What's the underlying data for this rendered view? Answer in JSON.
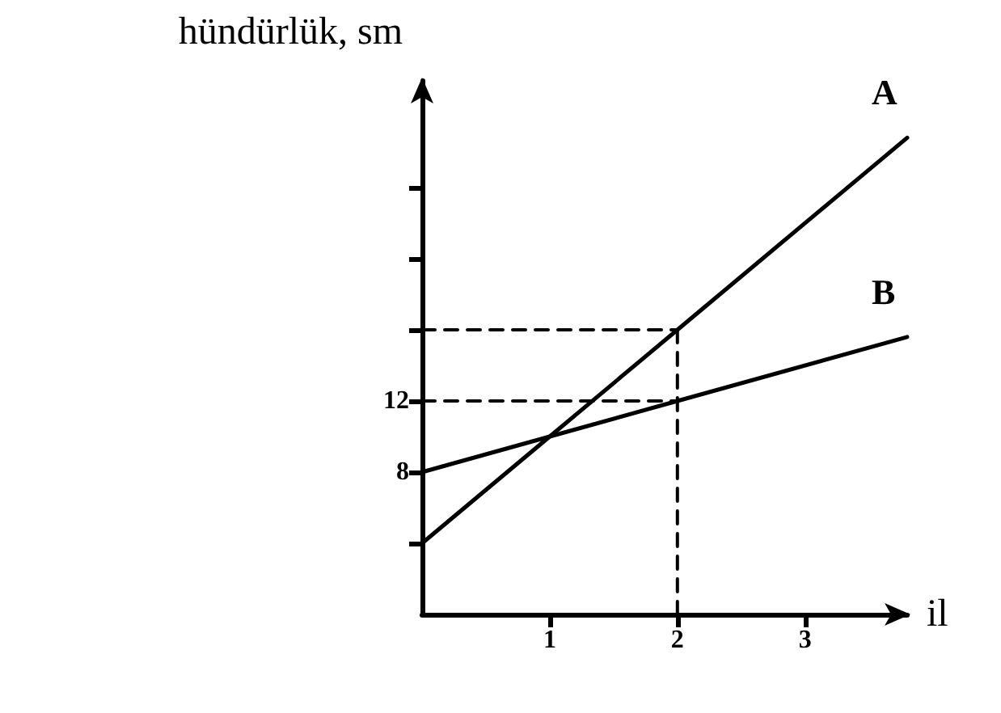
{
  "chart_data": {
    "type": "line",
    "xlabel": "il",
    "ylabel": "hündürlük, sm",
    "xlim": [
      0,
      3.8
    ],
    "ylim": [
      0,
      30
    ],
    "xticks": [
      1,
      2,
      3
    ],
    "yticks": [
      {
        "value": 4,
        "label": null
      },
      8,
      12,
      {
        "value": 16,
        "label": null
      },
      {
        "value": 20,
        "label": null
      },
      {
        "value": 24,
        "label": null
      }
    ],
    "grid": false,
    "legend": false,
    "marker": "none",
    "series": [
      {
        "name": "A",
        "color": "#000000",
        "x": [
          0,
          1,
          2,
          3.8
        ],
        "values": [
          4,
          10,
          16,
          26.8
        ]
      },
      {
        "name": "B",
        "color": "#000000",
        "x": [
          0,
          1,
          2,
          3.8
        ],
        "values": [
          8,
          10,
          12,
          15.6
        ]
      },
      {
        "color": "#000000",
        "line_style": "dashed",
        "x": [
          0,
          2
        ],
        "values": [
          16,
          16
        ]
      },
      {
        "color": "#000000",
        "line_style": "dashed",
        "x": [
          0,
          2
        ],
        "values": [
          12,
          12
        ]
      },
      {
        "color": "#000000",
        "line_style": "dashed",
        "x": [
          2,
          2
        ],
        "values": [
          0,
          16
        ]
      }
    ]
  }
}
